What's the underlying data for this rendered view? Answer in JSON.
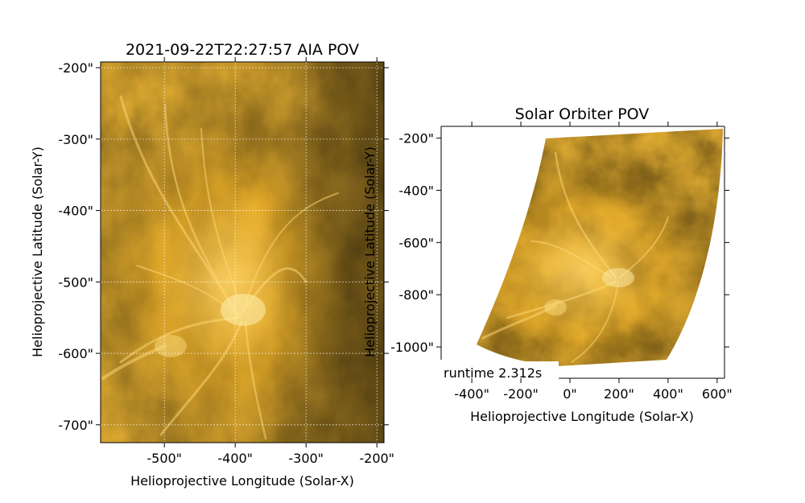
{
  "chart_data": [
    {
      "type": "heatmap",
      "title": "2021-09-22T22:27:57 AIA POV",
      "xlabel": "Helioprojective Longitude (Solar-X)",
      "ylabel": "Helioprojective Latitude (Solar-Y)",
      "xlim": [
        -590,
        -190
      ],
      "ylim": [
        -725,
        -192
      ],
      "x_ticks": [
        "-500\"",
        "-400\"",
        "-300\"",
        "-200\""
      ],
      "y_ticks": [
        "-200\"",
        "-300\"",
        "-400\"",
        "-500\"",
        "-600\"",
        "-700\""
      ],
      "colormap": [
        "#000000",
        "#3a2800",
        "#8a6200",
        "#d49a10",
        "#ffcc55"
      ],
      "grid": true
    },
    {
      "type": "heatmap",
      "title": "Solar Orbiter POV",
      "xlabel": "Helioprojective Longitude (Solar-X)",
      "ylabel": "Helioprojective Latitude (Solar-Y)",
      "xlim": [
        -525,
        630
      ],
      "ylim": [
        -1120,
        -155
      ],
      "x_ticks": [
        "-400\"",
        "-200\"",
        "0\"",
        "200\"",
        "400\"",
        "600\""
      ],
      "y_ticks": [
        "-200\"",
        "-400\"",
        "-600\"",
        "-800\"",
        "-1000\""
      ],
      "colormap": [
        "#000000",
        "#3a2800",
        "#8a6200",
        "#d49a10",
        "#ffcc55"
      ],
      "grid": false,
      "annotation": "runtime 2.312s"
    }
  ]
}
